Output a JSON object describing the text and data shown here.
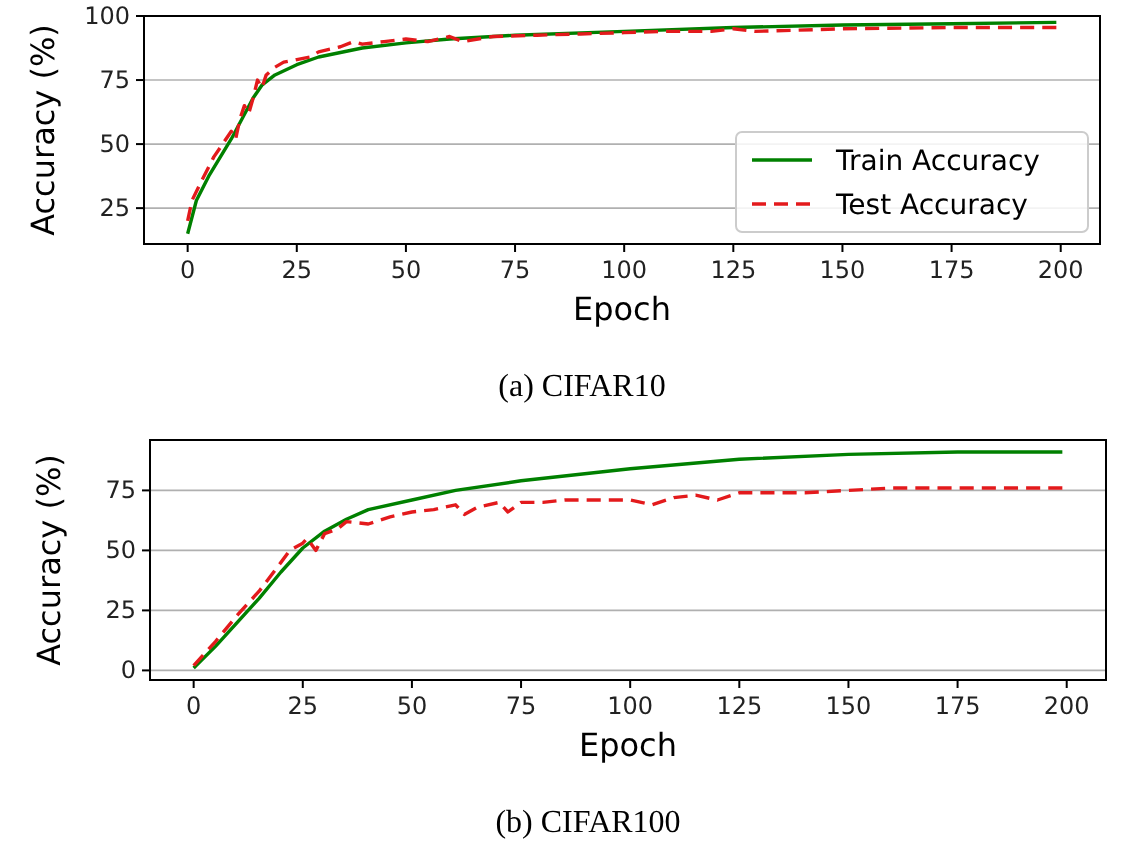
{
  "chart_data": [
    {
      "type": "line",
      "title": "(a) CIFAR10",
      "xlabel": "Epoch",
      "ylabel": "Accuracy (%)",
      "xlim": [
        -10,
        209
      ],
      "ylim": [
        11,
        100
      ],
      "xticks": [
        0,
        25,
        50,
        75,
        100,
        125,
        150,
        175,
        200
      ],
      "yticks": [
        25,
        50,
        75,
        100
      ],
      "grid": "y",
      "legend": "lower right",
      "series": [
        {
          "name": "Train Accuracy",
          "color": "#008000",
          "line_style": "solid",
          "x": [
            0,
            2,
            5,
            10,
            15,
            17,
            20,
            25,
            30,
            40,
            50,
            60,
            75,
            100,
            125,
            150,
            175,
            199
          ],
          "values": [
            15,
            28,
            38,
            52,
            68,
            73,
            77,
            81,
            84,
            87.5,
            89.5,
            91,
            92.5,
            94,
            95.5,
            96.5,
            97,
            97.5
          ]
        },
        {
          "name": "Test Accuracy",
          "color": "#e31a1c",
          "line_style": "dashed",
          "x": [
            0,
            1,
            3,
            6,
            8,
            10,
            11,
            12,
            13,
            14,
            15,
            16,
            17,
            18,
            20,
            22,
            25,
            28,
            30,
            35,
            38,
            40,
            45,
            50,
            55,
            60,
            63,
            70,
            80,
            90,
            100,
            110,
            120,
            125,
            130,
            150,
            175,
            199
          ],
          "values": [
            20,
            28,
            35,
            45,
            50,
            55,
            52,
            60,
            65,
            62,
            68,
            75,
            72,
            77,
            80,
            82,
            83,
            84,
            86,
            88,
            90,
            89,
            90,
            91,
            90,
            92,
            90,
            92,
            92.5,
            93,
            93.5,
            94,
            94,
            95,
            94,
            95,
            95.5,
            95.5
          ]
        }
      ]
    },
    {
      "type": "line",
      "title": "(b) CIFAR100",
      "xlabel": "Epoch",
      "ylabel": "Accuracy (%)",
      "xlim": [
        -10,
        209
      ],
      "ylim": [
        -4,
        96
      ],
      "xticks": [
        0,
        25,
        50,
        75,
        100,
        125,
        150,
        175,
        200
      ],
      "yticks": [
        0,
        25,
        50,
        75
      ],
      "grid": "y",
      "legend": false,
      "series": [
        {
          "color": "#008000",
          "line_style": "solid",
          "x": [
            0,
            5,
            10,
            15,
            20,
            25,
            30,
            35,
            40,
            50,
            60,
            75,
            100,
            125,
            150,
            175,
            199
          ],
          "values": [
            1,
            10,
            20,
            30,
            41,
            51,
            58,
            63,
            67,
            71,
            75,
            79,
            84,
            88,
            90,
            91,
            91
          ]
        },
        {
          "color": "#e31a1c",
          "line_style": "dashed",
          "x": [
            0,
            5,
            10,
            15,
            20,
            22,
            25,
            26,
            28,
            30,
            33,
            35,
            40,
            45,
            50,
            55,
            60,
            62,
            65,
            70,
            72,
            75,
            80,
            85,
            90,
            100,
            105,
            110,
            115,
            120,
            125,
            140,
            150,
            160,
            175,
            199
          ],
          "values": [
            2,
            12,
            23,
            33,
            45,
            50,
            53,
            55,
            50,
            57,
            59,
            62,
            61,
            64,
            66,
            67,
            69,
            65,
            68,
            70,
            66,
            70,
            70,
            71,
            71,
            71,
            69,
            72,
            73,
            71,
            74,
            74,
            75,
            76,
            76,
            76
          ]
        }
      ]
    }
  ]
}
